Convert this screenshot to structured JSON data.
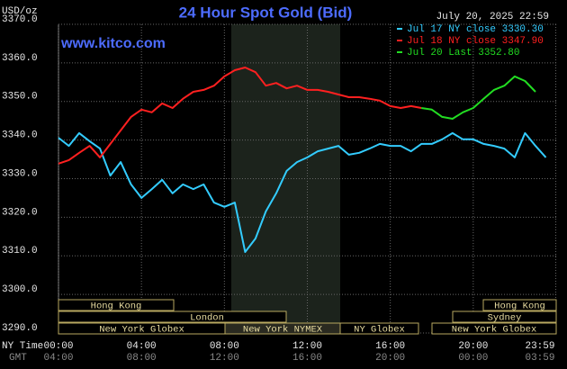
{
  "chart_data": {
    "type": "line",
    "title": "24 Hour Spot Gold (Bid)",
    "site": "www.kitco.com",
    "date": "July 20, 2025 22:59",
    "y_label": "USD/oz",
    "x_label": "NY Time",
    "x2_label": "GMT",
    "x": [
      0,
      0.5,
      1,
      1.5,
      2,
      2.5,
      3,
      3.5,
      4,
      4.5,
      5,
      5.5,
      6,
      6.5,
      7,
      7.5,
      8,
      8.5,
      9,
      9.5,
      10,
      10.5,
      11,
      11.5,
      12,
      12.5,
      13,
      13.5,
      14,
      14.5,
      15,
      15.5,
      16,
      16.5,
      17,
      17.5,
      18,
      18.5,
      19,
      19.5,
      20,
      20.5,
      21,
      21.5,
      22,
      22.5,
      23,
      23.5
    ],
    "series": [
      {
        "name": "Jul 17 NY close 3330.30",
        "color": "#33ccff",
        "values": [
          3340.6,
          3338.5,
          3341.8,
          3339.7,
          3337.8,
          3330.8,
          3334.3,
          3328.5,
          3325,
          3327.3,
          3329.7,
          3326.2,
          3328.5,
          3327.3,
          3328.5,
          3323.8,
          3322.7,
          3323.8,
          3311,
          3314.5,
          3321.5,
          3326.2,
          3332,
          3334.3,
          3335.5,
          3337.1,
          3337.8,
          3338.5,
          3336.2,
          3336.7,
          3337.8,
          3339,
          3338.5,
          3338.5,
          3337.1,
          3339,
          3339,
          3340.2,
          3341.8,
          3340.2,
          3340.2,
          3339,
          3338.5,
          3337.8,
          3335.5,
          3341.8,
          3338.5,
          3335.5
        ]
      },
      {
        "name": "Jul 18 NY close 3347.90",
        "color": "#ff2020",
        "values": [
          3333.9,
          3334.8,
          3336.7,
          3338.5,
          3335.5,
          3339,
          3342.5,
          3346,
          3347.9,
          3347.2,
          3349.5,
          3348.3,
          3350.7,
          3352.5,
          3353,
          3354.1,
          3356.5,
          3358.1,
          3358.8,
          3357.6,
          3354.1,
          3354.8,
          3353.4,
          3354.1,
          3353,
          3353,
          3352.5,
          3351.8,
          3351.1,
          3351.1,
          3350.7,
          3350.2,
          3348.8,
          3348.3,
          3348.8,
          3348.3,
          null,
          null,
          null,
          null,
          null,
          null,
          null,
          null,
          null,
          null,
          null,
          null
        ]
      },
      {
        "name": "Jul 20 Last 3352.80",
        "color": "#22dd22",
        "values": [
          null,
          null,
          null,
          null,
          null,
          null,
          null,
          null,
          null,
          null,
          null,
          null,
          null,
          null,
          null,
          null,
          null,
          null,
          null,
          null,
          null,
          null,
          null,
          null,
          null,
          null,
          null,
          null,
          null,
          null,
          null,
          null,
          null,
          null,
          null,
          3348.3,
          3347.9,
          3346,
          3345.5,
          3347.2,
          3348.3,
          3350.7,
          3353,
          3354.1,
          3356.5,
          3355.3,
          3352.5,
          null
        ]
      }
    ],
    "xlim": [
      0,
      24
    ],
    "xticks": [
      {
        "value": 0,
        "label": "00:00"
      },
      {
        "value": 4,
        "label": "04:00"
      },
      {
        "value": 8,
        "label": "08:00"
      },
      {
        "value": 12,
        "label": "12:00"
      },
      {
        "value": 16,
        "label": "16:00"
      },
      {
        "value": 20,
        "label": "20:00"
      },
      {
        "value": 23.98,
        "label": "23:59"
      }
    ],
    "gmt_labels": [
      "04:00",
      "08:00",
      "12:00",
      "16:00",
      "20:00",
      "00:00",
      "03:59"
    ],
    "ylim": [
      3290,
      3370
    ],
    "yticks": [
      {
        "value": 3290,
        "label": "3290.0"
      },
      {
        "value": 3300,
        "label": "3300.0"
      },
      {
        "value": 3310,
        "label": "3310.0"
      },
      {
        "value": 3320,
        "label": "3320.0"
      },
      {
        "value": 3330,
        "label": "3330.0"
      },
      {
        "value": 3340,
        "label": "3340.0"
      },
      {
        "value": 3350,
        "label": "3350.0"
      },
      {
        "value": 3360,
        "label": "3360.0"
      },
      {
        "value": 3370,
        "label": "3370.0"
      }
    ],
    "grid": true,
    "sessions": [
      "Hong Kong",
      "London",
      "New York Globex",
      "New York NYMEX",
      "NY Globex",
      "Hong Kong",
      "Sydney",
      "New York Globex"
    ]
  }
}
